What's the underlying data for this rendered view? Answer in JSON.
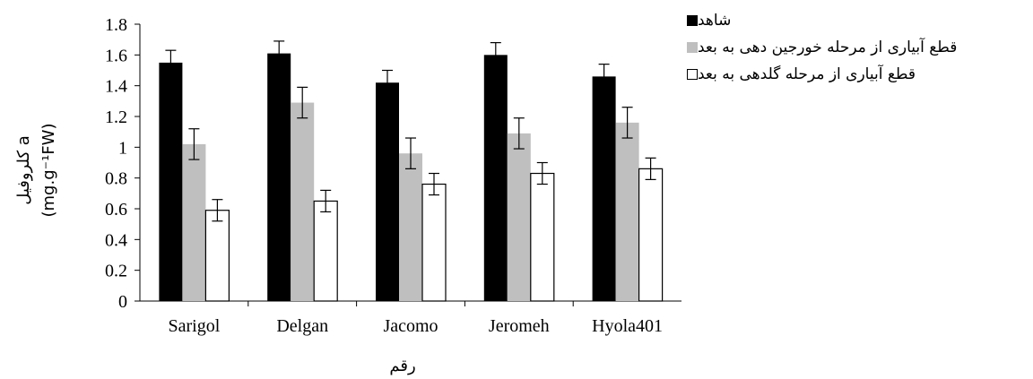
{
  "chart_data": {
    "type": "bar",
    "categories": [
      "Sarigol",
      "Delgan",
      "Jacomo",
      "Jeromeh",
      "Hyola401"
    ],
    "series": [
      {
        "name": "شاهد",
        "color": "#000000",
        "values": [
          1.55,
          1.61,
          1.42,
          1.6,
          1.46
        ],
        "errors": [
          0.08,
          0.08,
          0.08,
          0.08,
          0.08
        ]
      },
      {
        "name": "قطع آبیاری از مرحله خورجین دهی به بعد",
        "color": "#bfbfbf",
        "values": [
          1.02,
          1.29,
          0.96,
          1.09,
          1.16
        ],
        "errors": [
          0.1,
          0.1,
          0.1,
          0.1,
          0.1
        ]
      },
      {
        "name": "قطع آبیاری از مرحله گلدهی به بعد",
        "color": "#ffffff",
        "values": [
          0.59,
          0.65,
          0.76,
          0.83,
          0.86
        ],
        "errors": [
          0.07,
          0.07,
          0.07,
          0.07,
          0.07
        ]
      }
    ],
    "ylim": [
      0,
      1.8
    ],
    "yticks": [
      "0",
      "0.2",
      "0.4",
      "0.6",
      "0.8",
      "1",
      "1.2",
      "1.4",
      "1.6",
      "1.8"
    ],
    "ylabel": "کلروفیل a",
    "ylabel_unit": "(mg.g⁻¹FW)",
    "xlabel": "رقم",
    "grid": false,
    "legend_position": "top-right"
  }
}
